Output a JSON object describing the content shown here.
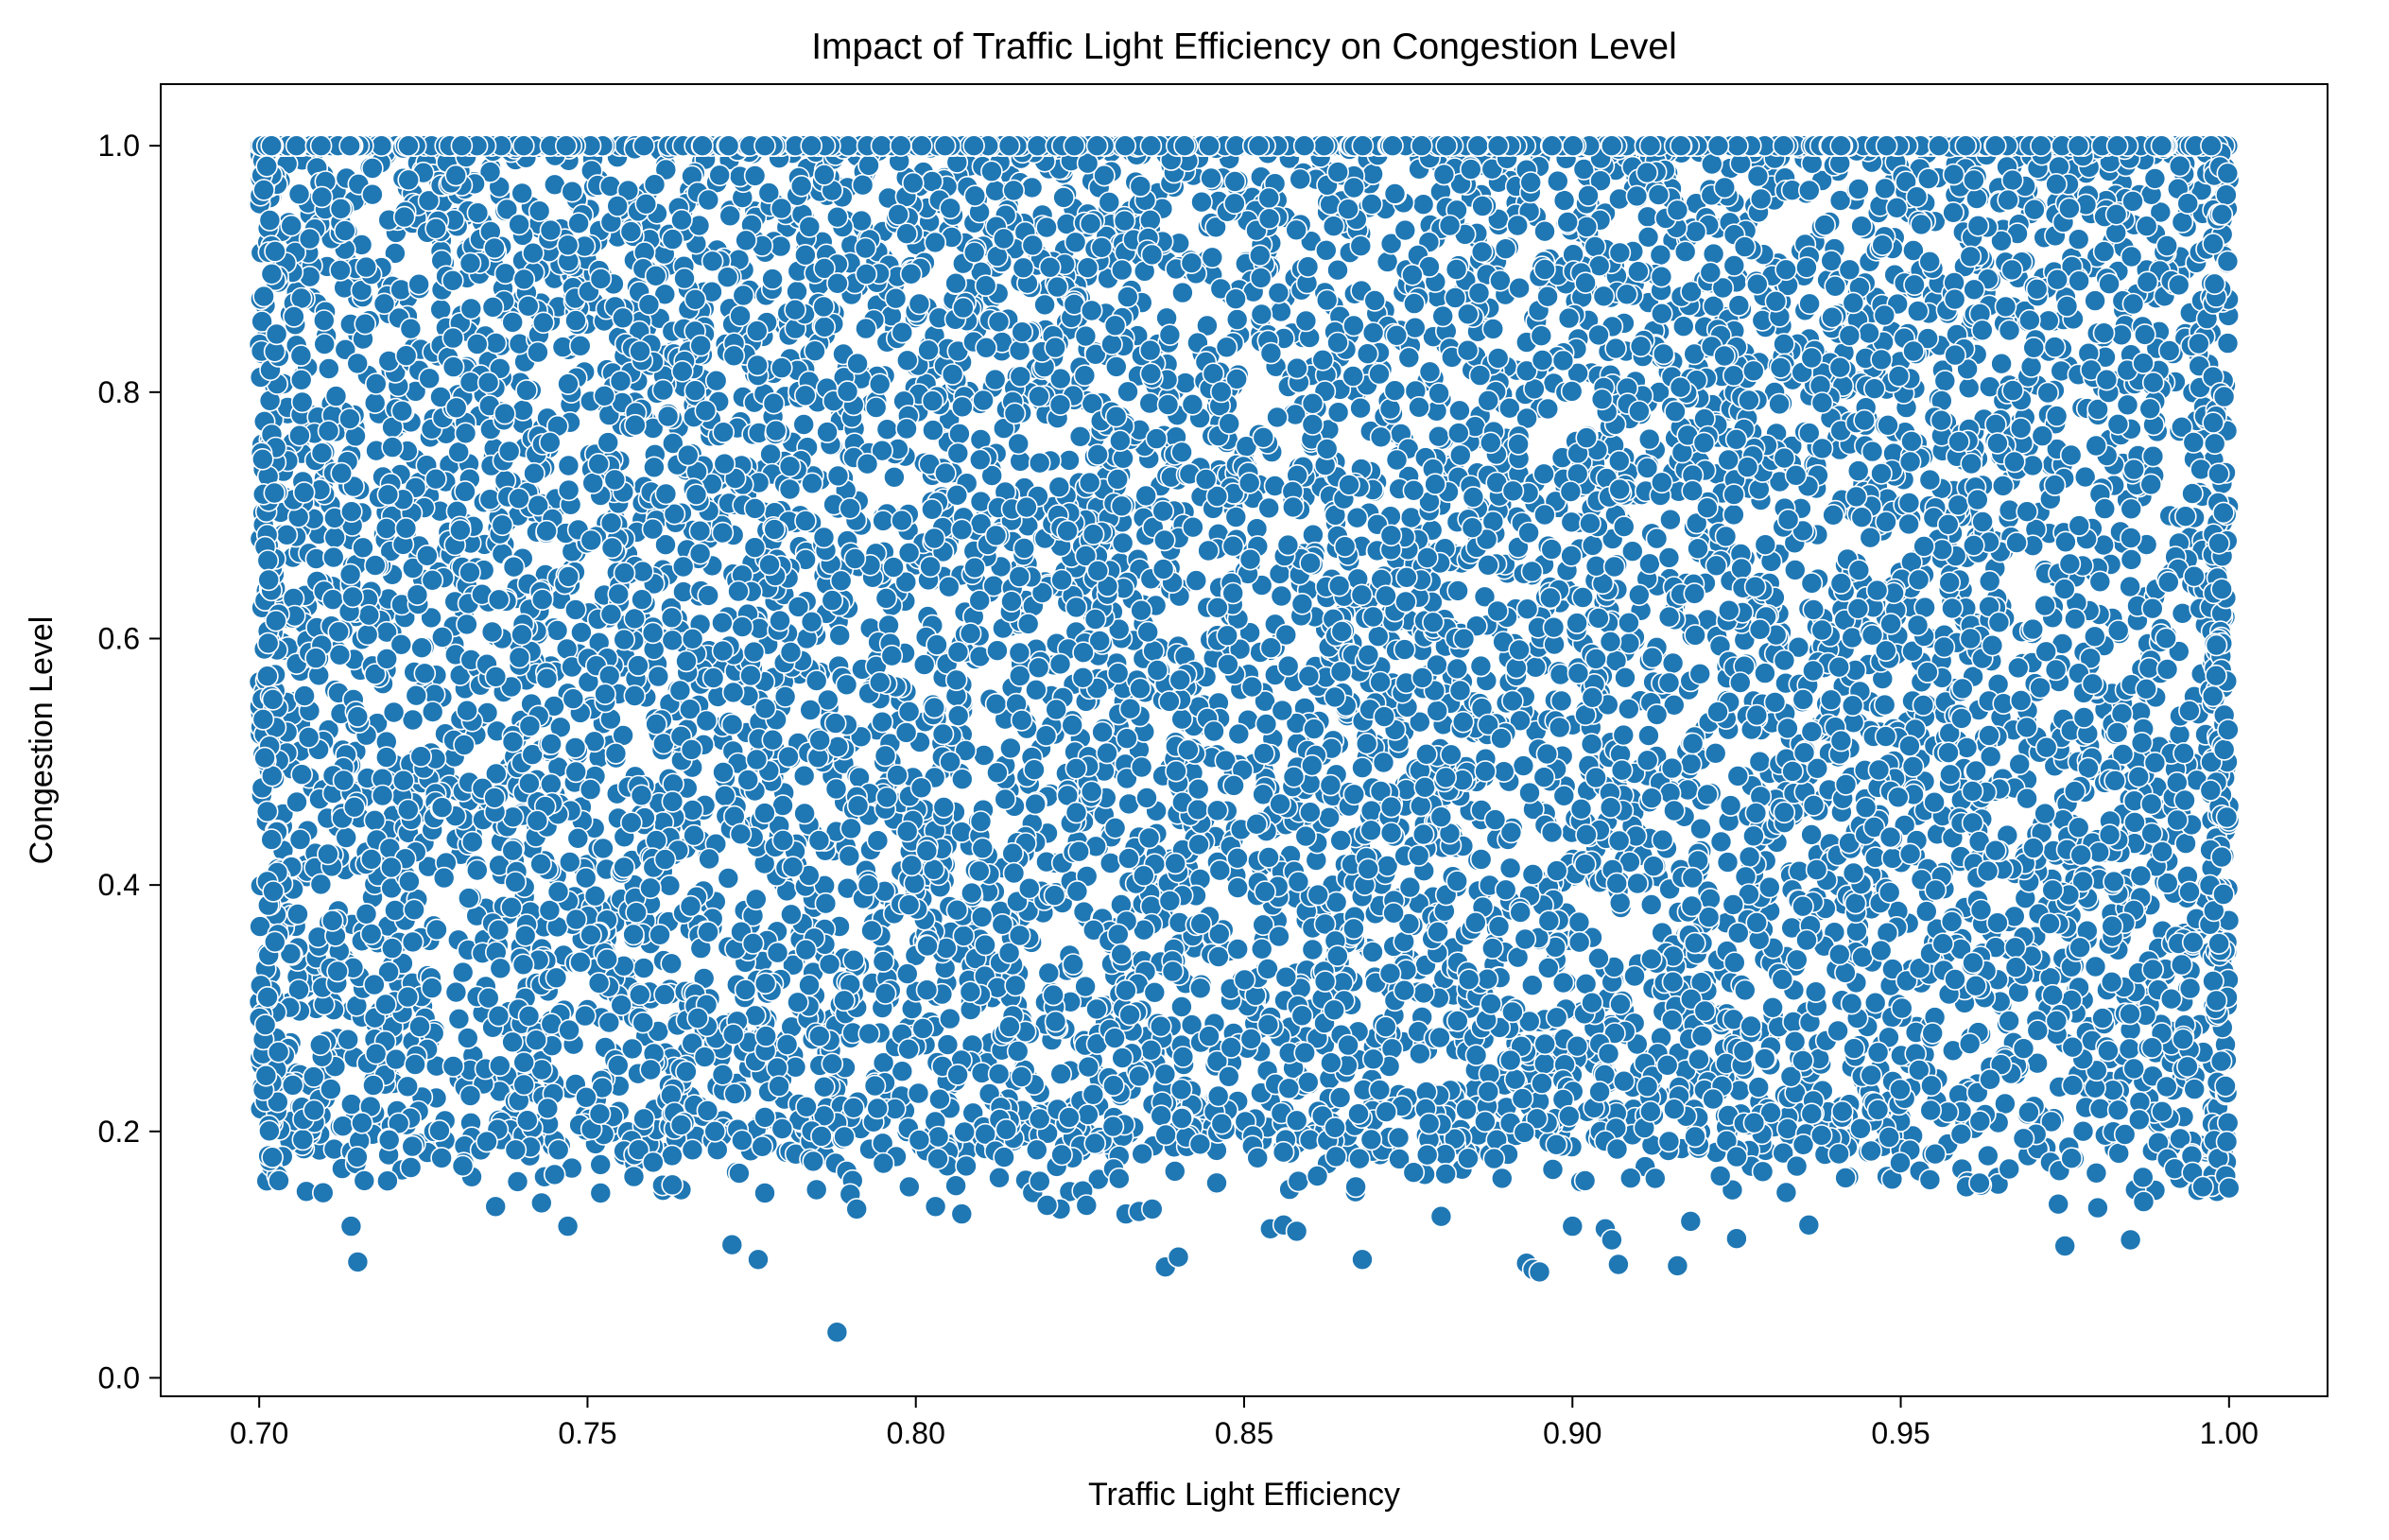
{
  "chart_data": {
    "type": "scatter",
    "title": "Impact of Traffic Light Efficiency on Congestion Level",
    "xlabel": "Traffic Light Efficiency",
    "ylabel": "Congestion Level",
    "xlim": [
      0.685,
      1.015
    ],
    "ylim": [
      -0.015,
      1.05
    ],
    "xticks": [
      0.7,
      0.75,
      0.8,
      0.85,
      0.9,
      0.95,
      1.0
    ],
    "xtick_labels": [
      "0.70",
      "0.75",
      "0.80",
      "0.85",
      "0.90",
      "0.95",
      "1.00"
    ],
    "yticks": [
      0.0,
      0.2,
      0.4,
      0.6,
      0.8,
      1.0
    ],
    "ytick_labels": [
      "0.0",
      "0.2",
      "0.4",
      "0.6",
      "0.8",
      "1.0"
    ],
    "grid": false,
    "legend": "none",
    "marker_color": "#1f77b4",
    "marker_edge_color": "#ffffff",
    "x_range": [
      0.7,
      1.0
    ],
    "y_range": [
      0.0,
      1.0
    ],
    "dense_region_note_free": true,
    "series": [
      {
        "x": [
          0.788,
          0.714,
          0.715,
          0.702,
          0.703,
          0.716,
          0.736,
          0.743,
          0.747,
          0.752,
          0.772,
          0.776,
          0.777,
          0.79,
          0.791,
          0.799,
          0.803,
          0.807,
          0.822,
          0.826,
          0.832,
          0.834,
          0.836,
          0.838,
          0.84,
          0.854,
          0.856,
          0.858,
          0.868,
          0.893,
          0.894,
          0.895,
          0.9,
          0.905,
          0.906,
          0.907,
          0.916,
          0.918,
          0.925,
          0.936,
          0.975,
          0.985,
          0.974,
          0.98,
          0.987,
          1.0,
          0.996,
          0.82,
          0.867,
          0.88,
          0.96,
          0.962,
          0.745,
          0.76,
          0.731
        ],
        "y": [
          0.037,
          0.123,
          0.094,
          0.179,
          0.16,
          0.16,
          0.139,
          0.142,
          0.123,
          0.15,
          0.108,
          0.096,
          0.15,
          0.149,
          0.137,
          0.155,
          0.139,
          0.133,
          0.137,
          0.14,
          0.133,
          0.135,
          0.137,
          0.09,
          0.098,
          0.121,
          0.124,
          0.119,
          0.096,
          0.093,
          0.088,
          0.086,
          0.123,
          0.121,
          0.112,
          0.092,
          0.091,
          0.127,
          0.113,
          0.124,
          0.107,
          0.112,
          0.141,
          0.138,
          0.143,
          0.154,
          0.155,
          0.14,
          0.155,
          0.131,
          0.155,
          0.158,
          0.165,
          0.175,
          0.172
        ]
      }
    ]
  }
}
